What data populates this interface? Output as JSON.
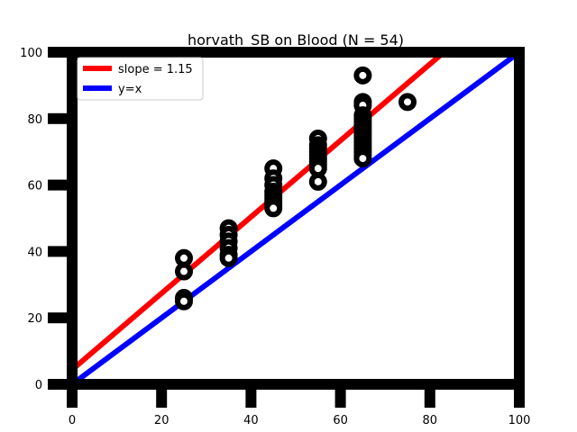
{
  "chart_data": {
    "type": "scatter",
    "title": "horvath_SB on Blood (N = 54)",
    "xlabel": "",
    "ylabel": "",
    "xlim": [
      0,
      100
    ],
    "ylim": [
      0,
      100
    ],
    "xticks": [
      0,
      20,
      40,
      60,
      80,
      100
    ],
    "yticks": [
      0,
      20,
      40,
      60,
      80,
      100
    ],
    "grid": false,
    "legend_position": "top-left",
    "legend": [
      {
        "label": "slope = 1.15",
        "color": "#ff0000"
      },
      {
        "label": "y=x",
        "color": "#0000ff"
      }
    ],
    "lines": [
      {
        "name": "slope = 1.15",
        "color": "#ff0000",
        "slope": 1.15,
        "intercept": 4.4
      },
      {
        "name": "y=x",
        "color": "#0000ff",
        "slope": 1.0,
        "intercept": 0.0
      }
    ],
    "points": [
      [
        25,
        38
      ],
      [
        25,
        34
      ],
      [
        25,
        26
      ],
      [
        25,
        25
      ],
      [
        35,
        47
      ],
      [
        35,
        45
      ],
      [
        35,
        43
      ],
      [
        35,
        41
      ],
      [
        35,
        39
      ],
      [
        35,
        38
      ],
      [
        45,
        65
      ],
      [
        45,
        62
      ],
      [
        45,
        60
      ],
      [
        45,
        58
      ],
      [
        45,
        57
      ],
      [
        45,
        56
      ],
      [
        45,
        55
      ],
      [
        45,
        54
      ],
      [
        45,
        53
      ],
      [
        55,
        74
      ],
      [
        55,
        72
      ],
      [
        55,
        71
      ],
      [
        55,
        70
      ],
      [
        55,
        69
      ],
      [
        55,
        68
      ],
      [
        55,
        67
      ],
      [
        55,
        66
      ],
      [
        55,
        65
      ],
      [
        55,
        61
      ],
      [
        65,
        93
      ],
      [
        65,
        85
      ],
      [
        65,
        84
      ],
      [
        65,
        81
      ],
      [
        65,
        80
      ],
      [
        65,
        79
      ],
      [
        65,
        78
      ],
      [
        65,
        77
      ],
      [
        65,
        76
      ],
      [
        65,
        75
      ],
      [
        65,
        74
      ],
      [
        65,
        73
      ],
      [
        65,
        72
      ],
      [
        65,
        71
      ],
      [
        65,
        70
      ],
      [
        65,
        69
      ],
      [
        65,
        68
      ],
      [
        75,
        85
      ]
    ],
    "point_color": "#000000"
  }
}
